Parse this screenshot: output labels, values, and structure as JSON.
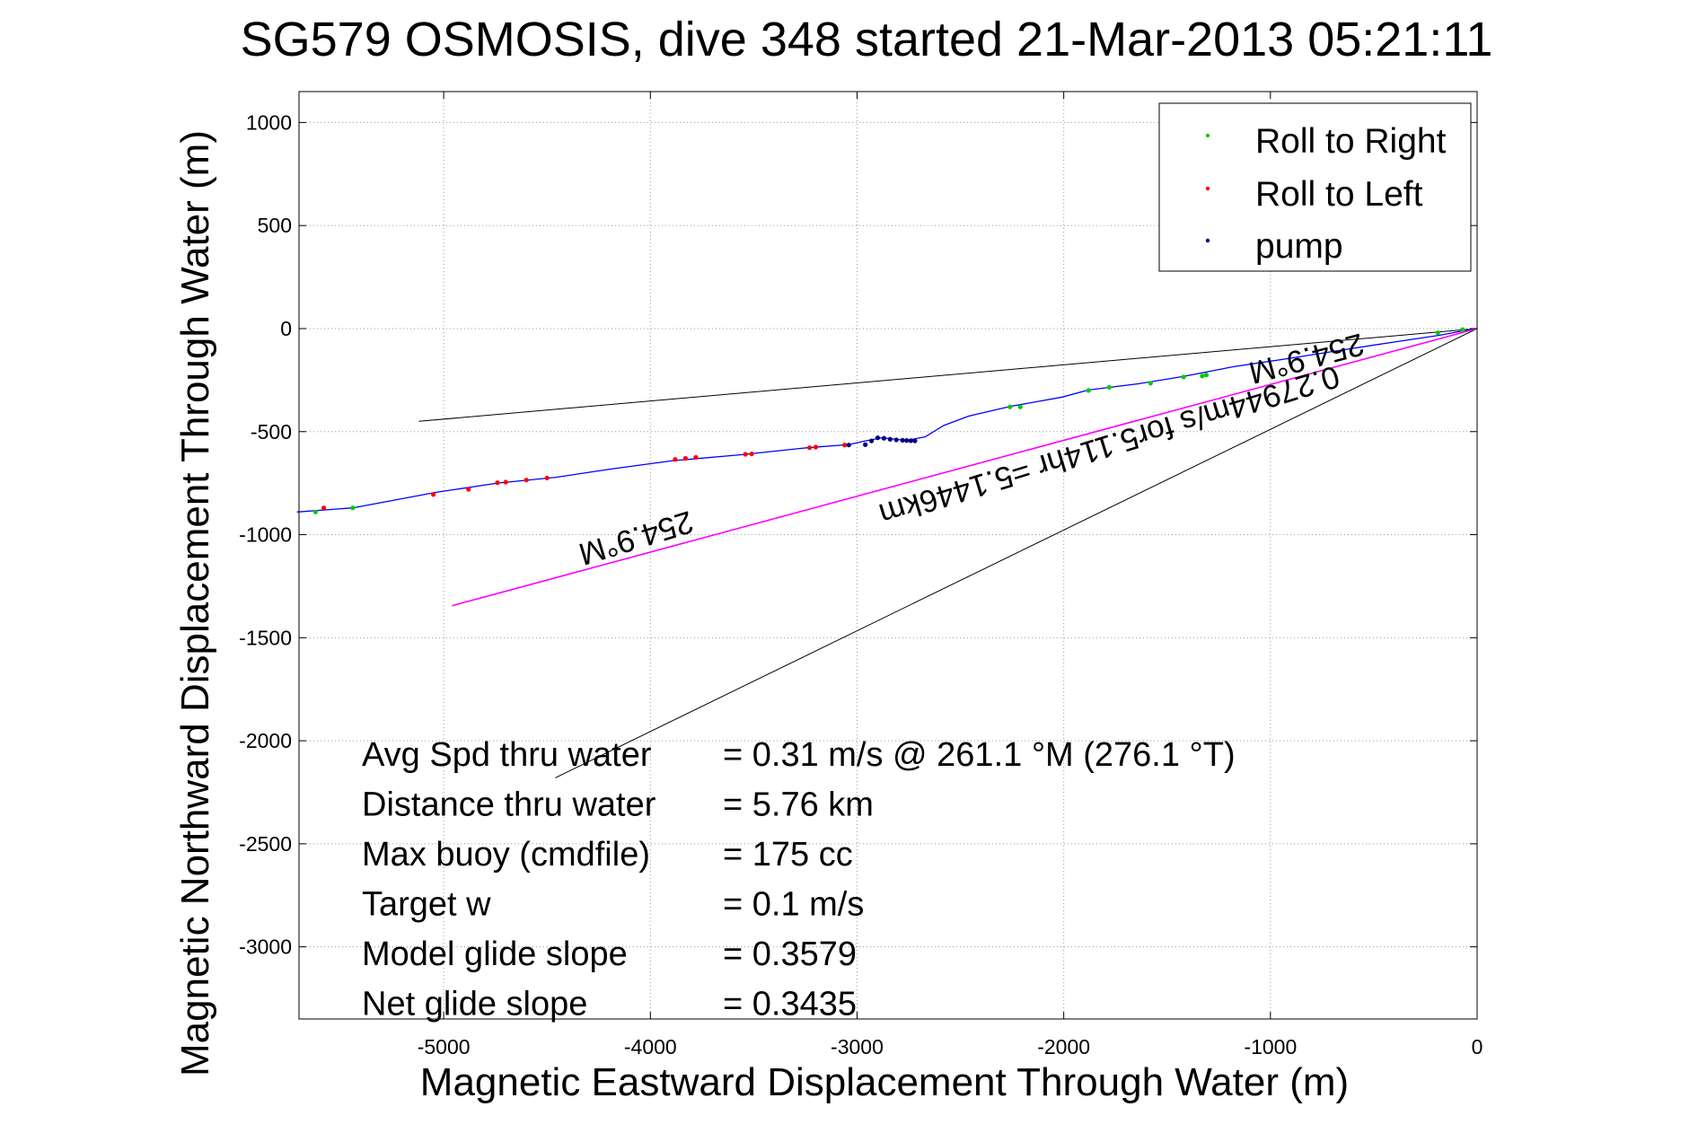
{
  "chart_data": {
    "type": "scatter",
    "title": "SG579 OSMOSIS, dive 348 started 21-Mar-2013 05:21:11",
    "xlabel": "Magnetic Eastward Displacement Through Water (m)",
    "ylabel": "Magnetic Northward Displacement Through Water (m)",
    "xlim": [
      -5700,
      0
    ],
    "ylim": [
      -3350,
      1150
    ],
    "xticks": [
      -5000,
      -4000,
      -3000,
      -2000,
      -1000,
      0
    ],
    "yticks": [
      1000,
      500,
      0,
      -500,
      -1000,
      -1500,
      -2000,
      -2500,
      -3000
    ],
    "grid": true,
    "legend_position": "top-right",
    "colors": {
      "track": "#0000ff",
      "roll_right": "#00cc00",
      "roll_left": "#ff0000",
      "pump": "#000080",
      "heading_line": "#ff00ff",
      "reference_lines": "#000000"
    },
    "series": [
      {
        "name": "Roll to Right",
        "x": [
          -5620,
          -5440,
          -2260,
          -2210,
          -1880,
          -1780,
          -1580,
          -1420,
          -1330,
          -1310,
          -190,
          -70
        ],
        "y": [
          -890,
          -870,
          -380,
          -380,
          -300,
          -285,
          -265,
          -235,
          -230,
          -225,
          -20,
          -5
        ]
      },
      {
        "name": "Roll to Left",
        "x": [
          -5580,
          -5050,
          -4880,
          -4740,
          -4700,
          -4600,
          -4500,
          -3880,
          -3830,
          -3780,
          -3540,
          -3510,
          -3230,
          -3200,
          -3060
        ],
        "y": [
          -870,
          -805,
          -780,
          -748,
          -745,
          -735,
          -725,
          -635,
          -630,
          -625,
          -610,
          -608,
          -578,
          -575,
          -565
        ]
      },
      {
        "name": "pump",
        "x": [
          -3040,
          -2960,
          -2930,
          -2900,
          -2870,
          -2840,
          -2810,
          -2780,
          -2760,
          -2740,
          -2720
        ],
        "y": [
          -565,
          -563,
          -545,
          -530,
          -532,
          -537,
          -540,
          -542,
          -543,
          -544,
          -545
        ]
      },
      {
        "x": [
          -5710,
          -5440,
          -5040,
          -4740,
          -4460,
          -4200,
          -3900,
          -3560,
          -3240,
          -3040,
          -2960,
          -2880,
          -2760,
          -2670,
          -2580,
          -2460,
          -2260,
          -2010,
          -1880,
          -1640,
          -1420,
          -1180,
          -910,
          -660,
          -420,
          -180,
          -60,
          0
        ],
        "y": [
          -890,
          -870,
          -795,
          -750,
          -722,
          -683,
          -642,
          -612,
          -578,
          -563,
          -545,
          -530,
          -543,
          -525,
          -470,
          -425,
          -378,
          -333,
          -298,
          -268,
          -232,
          -185,
          -145,
          -105,
          -68,
          -32,
          -10,
          0
        ]
      },
      {
        "x": [
          0,
          -4960
        ],
        "y": [
          0,
          -1345
        ]
      }
    ],
    "reference_lines": [
      {
        "x": [
          0,
          -5120
        ],
        "y": [
          0,
          -450
        ]
      },
      {
        "x": [
          0,
          -4460
        ],
        "y": [
          0,
          -2180
        ]
      }
    ],
    "annotations": {
      "heading_upper": "254.9°M",
      "speed_note": "0.27944m/s for5.114hr =5.1446km",
      "heading_lower": "254.9°M"
    },
    "stats": [
      {
        "label": "Avg Spd thru water",
        "value": "=  0.31 m/s @ 261.1 °M (276.1 °T)"
      },
      {
        "label": "Distance thru water",
        "value": "=  5.76 km"
      },
      {
        "label": "Max buoy (cmdfile)",
        "value": "= 175 cc"
      },
      {
        "label": "Target w",
        "value": "= 0.1 m/s"
      },
      {
        "label": "Model glide slope",
        "value": "= 0.3579"
      },
      {
        "label": "Net glide slope",
        "value": "= 0.3435"
      }
    ]
  }
}
